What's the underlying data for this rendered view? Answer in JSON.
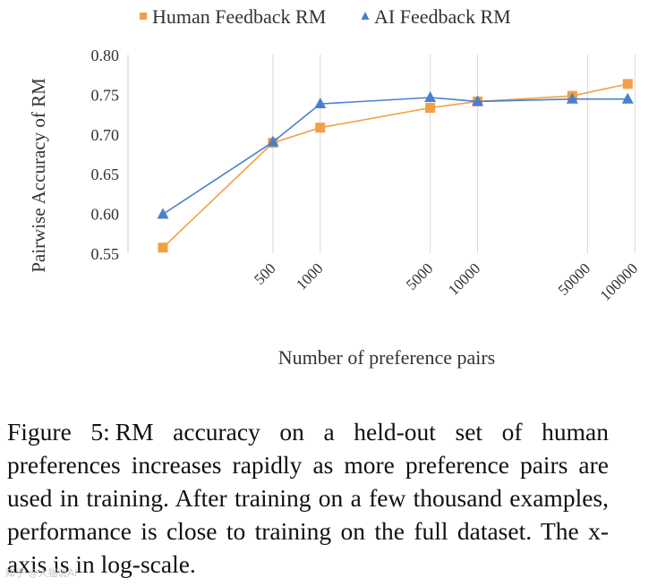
{
  "chart_data": {
    "type": "line",
    "x": [
      100,
      500,
      1000,
      5000,
      10000,
      40000,
      90000
    ],
    "x_tick_values": [
      500,
      1000,
      5000,
      10000,
      50000,
      100000
    ],
    "x_tick_labels": [
      "500",
      "1000",
      "5000",
      "10000",
      "50000",
      "100000"
    ],
    "x_scale": "log",
    "xlabel": "Number of preference pairs",
    "ylabel": "Pairwise Accuracy of RM",
    "ylim": [
      0.55,
      0.8
    ],
    "y_ticks": [
      0.55,
      0.6,
      0.65,
      0.7,
      0.75,
      0.8
    ],
    "y_tick_labels": [
      "0.55",
      "0.60",
      "0.65",
      "0.70",
      "0.75",
      "0.80"
    ],
    "grid": "vertical",
    "legend_position": "top",
    "series": [
      {
        "name": "Human Feedback RM",
        "marker": "square",
        "color": "#f0a045",
        "values": [
          0.557,
          0.689,
          0.708,
          0.733,
          0.741,
          0.748,
          0.763
        ]
      },
      {
        "name": "AI Feedback RM",
        "marker": "triangle",
        "color": "#4a7fcf",
        "values": [
          0.599,
          0.69,
          0.738,
          0.746,
          0.741,
          0.744,
          0.744
        ]
      }
    ]
  },
  "caption": {
    "label": "Figure 5:",
    "text": "RM accuracy on a held-out set of human preferences increases rapidly as more preference pairs are used in training. After training on a few thousand examples, performance is close to training on the full dataset. The x-axis is in log-scale."
  },
  "watermark": "知乎 @大猫说AI"
}
